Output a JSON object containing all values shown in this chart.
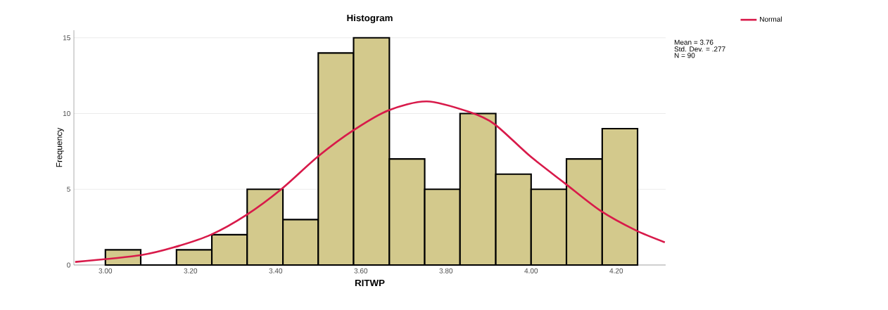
{
  "chart_data": {
    "type": "histogram",
    "title": "Histogram",
    "xlabel": "RITWP",
    "ylabel": "Frequency",
    "bins": [
      3.0,
      3.083,
      3.167,
      3.25,
      3.333,
      3.417,
      3.5,
      3.583,
      3.667,
      3.75,
      3.833,
      3.917,
      4.0,
      4.083,
      4.167,
      4.25
    ],
    "values": [
      1,
      0,
      1,
      2,
      5,
      3,
      14,
      15,
      7,
      5,
      10,
      6,
      5,
      7,
      9
    ],
    "color": "#d3c98c",
    "series": [
      {
        "type": "line",
        "name": "Normal",
        "color": "#d81a4a",
        "x": [
          2.929,
          3.083,
          3.165,
          3.248,
          3.331,
          3.413,
          3.501,
          3.583,
          3.664,
          3.755,
          3.855,
          3.914,
          3.997,
          4.079,
          4.162,
          4.245,
          4.314
        ],
        "values": [
          0.2,
          0.65,
          1.2,
          2.0,
          3.3,
          5.0,
          7.2,
          8.9,
          10.2,
          10.8,
          10.1,
          9.3,
          7.2,
          5.4,
          3.6,
          2.3,
          1.5
        ]
      }
    ],
    "xlim": [
      2.926,
      4.316
    ],
    "ylim": [
      0,
      15.5
    ],
    "xticks": [
      {
        "value": 3.0,
        "label": "3.00"
      },
      {
        "value": 3.2,
        "label": "3.20"
      },
      {
        "value": 3.4,
        "label": "3.40"
      },
      {
        "value": 3.6,
        "label": "3.60"
      },
      {
        "value": 3.8,
        "label": "3.80"
      },
      {
        "value": 4.0,
        "label": "4.00"
      },
      {
        "value": 4.2,
        "label": "4.20"
      }
    ],
    "yticks": [
      0,
      5,
      10,
      15
    ],
    "grid": "y",
    "legend": "top right",
    "annotations": [
      "Mean = 3.76",
      "Std. Dev. = .277",
      "N = 90"
    ]
  }
}
